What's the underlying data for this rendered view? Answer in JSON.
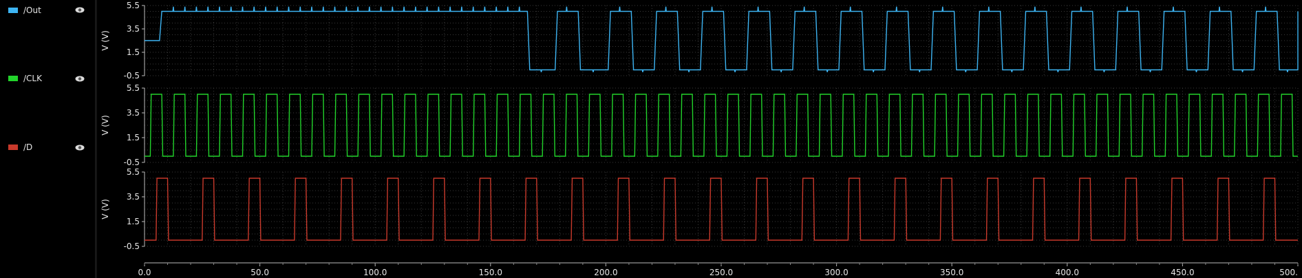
{
  "chart_data": {
    "type": "line",
    "x_axis": {
      "ticks": [
        0,
        50,
        100,
        150,
        200,
        250,
        300,
        350,
        400,
        450,
        500
      ],
      "tick_labels": [
        "0.0",
        "50.0",
        "100.0",
        "150.0",
        "200.0",
        "250.0",
        "300.0",
        "350.0",
        "400.0",
        "450.0",
        "500."
      ],
      "range": [
        0,
        500
      ]
    },
    "panels": [
      {
        "name": "/Out",
        "color": "#3db4f2",
        "ylabel": "V (V)",
        "ylim": [
          -0.5,
          5.5
        ],
        "yticks": [
          5.5,
          3.5,
          1.5,
          -0.5
        ],
        "ytick_labels": [
          "5.5",
          "3.5",
          "1.5",
          "-0.5"
        ],
        "initial": 2.5,
        "low": 0.0,
        "high": 5.0,
        "rise_at": 7,
        "hold_high_until": 166,
        "edges": [
          [
            166,
            0
          ],
          [
            178,
            5
          ],
          [
            188,
            0
          ],
          [
            201,
            5
          ],
          [
            211,
            0
          ],
          [
            221,
            5
          ],
          [
            231,
            0
          ],
          [
            241,
            5
          ],
          [
            251,
            0
          ],
          [
            261,
            5
          ],
          [
            271,
            0
          ],
          [
            281,
            5
          ],
          [
            291,
            0
          ],
          [
            301,
            5
          ],
          [
            311,
            0
          ],
          [
            321,
            5
          ],
          [
            331,
            0
          ],
          [
            341,
            5
          ],
          [
            351,
            0
          ],
          [
            361,
            5
          ],
          [
            371,
            0
          ],
          [
            381,
            5
          ],
          [
            391,
            0
          ],
          [
            401,
            5
          ],
          [
            411,
            0
          ],
          [
            421,
            5
          ],
          [
            431,
            0
          ],
          [
            441,
            5
          ],
          [
            451,
            0
          ],
          [
            461,
            5
          ],
          [
            471,
            0
          ],
          [
            481,
            5
          ],
          [
            491,
            0
          ],
          [
            500,
            5
          ]
        ],
        "glitch_period": 5,
        "glitch_amplitude": 0.4
      },
      {
        "name": "/CLK",
        "color": "#22d32b",
        "ylabel": "V (V)",
        "ylim": [
          -0.5,
          5.5
        ],
        "yticks": [
          5.5,
          3.5,
          1.5,
          -0.5
        ],
        "ytick_labels": [
          "5.5",
          "3.5",
          "1.5",
          "-0.5"
        ],
        "low": 0.0,
        "high": 5.0,
        "period": 10,
        "high_start": 2.5,
        "high_end": 7.5
      },
      {
        "name": "/D",
        "color": "#c8392b",
        "ylabel": "V (V)",
        "ylim": [
          -0.5,
          5.5
        ],
        "yticks": [
          5.5,
          3.5,
          1.5,
          -0.5
        ],
        "ytick_labels": [
          "5.5",
          "3.5",
          "1.5",
          "-0.5"
        ],
        "low": 0.0,
        "high": 5.0,
        "period": 20,
        "high_start": 5,
        "high_end": 10
      }
    ],
    "grid": true
  }
}
